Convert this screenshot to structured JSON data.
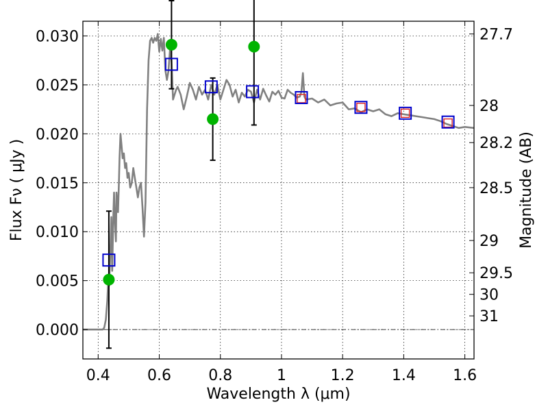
{
  "chart_data": {
    "type": "line",
    "xlabel": "Wavelength  λ (μm)",
    "ylabel": "Flux  Fν  ( μJy )",
    "ylabel_right": "Magnitude (AB)",
    "xlim": [
      0.35,
      1.63
    ],
    "ylim": [
      -0.003,
      0.0315
    ],
    "grid": true,
    "x_ticks": [
      0.4,
      0.6,
      0.8,
      1.0,
      1.2,
      1.4,
      1.6
    ],
    "x_tick_labels": [
      "0.4",
      "0.6",
      "0.8",
      "1",
      "1.2",
      "1.4",
      "1.6"
    ],
    "y_ticks": [
      0.0,
      0.005,
      0.01,
      0.015,
      0.02,
      0.025,
      0.03
    ],
    "y_tick_labels": [
      "0.000",
      "0.005",
      "0.010",
      "0.015",
      "0.020",
      "0.025",
      "0.030"
    ],
    "right_ticks": [
      {
        "label": "27.7",
        "flux": 0.0302
      },
      {
        "label": "28",
        "flux": 0.0229
      },
      {
        "label": "28.2",
        "flux": 0.0191
      },
      {
        "label": "28.5",
        "flux": 0.0145
      },
      {
        "label": "29",
        "flux": 0.0091
      },
      {
        "label": "29.5",
        "flux": 0.0058
      },
      {
        "label": "30",
        "flux": 0.0036
      },
      {
        "label": "31",
        "flux": 0.0014
      }
    ],
    "series": [
      {
        "kind": "model_spectrum",
        "color": "#808080",
        "x": [
          0.35,
          0.4,
          0.41,
          0.415,
          0.42,
          0.425,
          0.43,
          0.433,
          0.436,
          0.44,
          0.443,
          0.446,
          0.45,
          0.452,
          0.455,
          0.458,
          0.46,
          0.462,
          0.465,
          0.468,
          0.47,
          0.473,
          0.476,
          0.48,
          0.484,
          0.488,
          0.492,
          0.496,
          0.5,
          0.505,
          0.51,
          0.515,
          0.52,
          0.525,
          0.53,
          0.535,
          0.54,
          0.545,
          0.55,
          0.555,
          0.56,
          0.565,
          0.57,
          0.575,
          0.58,
          0.585,
          0.59,
          0.595,
          0.6,
          0.605,
          0.61,
          0.615,
          0.62,
          0.625,
          0.63,
          0.635,
          0.64,
          0.645,
          0.65,
          0.655,
          0.66,
          0.67,
          0.68,
          0.69,
          0.7,
          0.71,
          0.72,
          0.73,
          0.74,
          0.75,
          0.76,
          0.77,
          0.78,
          0.79,
          0.8,
          0.81,
          0.82,
          0.83,
          0.84,
          0.85,
          0.86,
          0.87,
          0.88,
          0.89,
          0.9,
          0.91,
          0.92,
          0.93,
          0.94,
          0.95,
          0.96,
          0.97,
          0.98,
          0.99,
          1.0,
          1.01,
          1.02,
          1.03,
          1.04,
          1.05,
          1.06,
          1.065,
          1.07,
          1.075,
          1.08,
          1.1,
          1.12,
          1.14,
          1.16,
          1.18,
          1.2,
          1.22,
          1.24,
          1.26,
          1.28,
          1.3,
          1.32,
          1.34,
          1.36,
          1.38,
          1.4,
          1.42,
          1.44,
          1.46,
          1.48,
          1.5,
          1.52,
          1.54,
          1.56,
          1.58,
          1.6,
          1.63
        ],
        "y": [
          0.0,
          0.0,
          0.0,
          0.0,
          0.0002,
          0.001,
          0.003,
          0.005,
          0.0045,
          0.008,
          0.0115,
          0.006,
          0.012,
          0.014,
          0.011,
          0.009,
          0.014,
          0.013,
          0.012,
          0.015,
          0.0175,
          0.02,
          0.019,
          0.0175,
          0.018,
          0.0165,
          0.017,
          0.0155,
          0.016,
          0.0145,
          0.015,
          0.0165,
          0.0155,
          0.0145,
          0.0135,
          0.0145,
          0.015,
          0.0125,
          0.0095,
          0.013,
          0.0225,
          0.0275,
          0.0295,
          0.0298,
          0.0293,
          0.0298,
          0.0295,
          0.0302,
          0.0284,
          0.0297,
          0.0285,
          0.0298,
          0.0265,
          0.0255,
          0.0264,
          0.0285,
          0.0275,
          0.0235,
          0.024,
          0.0245,
          0.0248,
          0.024,
          0.0225,
          0.0238,
          0.0252,
          0.0245,
          0.0235,
          0.0248,
          0.024,
          0.0245,
          0.0235,
          0.025,
          0.024,
          0.025,
          0.0235,
          0.0245,
          0.0255,
          0.025,
          0.0238,
          0.0245,
          0.0232,
          0.0242,
          0.0238,
          0.0245,
          0.0243,
          0.0232,
          0.0245,
          0.0235,
          0.0246,
          0.0239,
          0.0233,
          0.0243,
          0.024,
          0.0244,
          0.0237,
          0.0236,
          0.0245,
          0.0242,
          0.024,
          0.0237,
          0.0238,
          0.0243,
          0.0262,
          0.0238,
          0.0235,
          0.0236,
          0.0232,
          0.0235,
          0.0229,
          0.0231,
          0.0232,
          0.0225,
          0.0226,
          0.0222,
          0.0225,
          0.0223,
          0.0225,
          0.022,
          0.0218,
          0.0221,
          0.022,
          0.0219,
          0.0218,
          0.0217,
          0.0216,
          0.0215,
          0.0213,
          0.021,
          0.0208,
          0.0206,
          0.0207,
          0.0206
        ]
      },
      {
        "kind": "observed",
        "color": "#00b400",
        "x": [
          0.435,
          0.64,
          0.775,
          0.91
        ],
        "y": [
          0.0051,
          0.0291,
          0.0215,
          0.0289
        ],
        "err": [
          0.007,
          0.0045,
          0.0042,
          0.008
        ]
      },
      {
        "kind": "model_blue_squares",
        "color": "#0000cc",
        "x": [
          0.435,
          0.64,
          0.77,
          0.905,
          1.065,
          1.26,
          1.405,
          1.545
        ],
        "y": [
          0.0071,
          0.0271,
          0.0248,
          0.0243,
          0.0237,
          0.0227,
          0.0221,
          0.0212
        ]
      },
      {
        "kind": "model_red_squares",
        "color": "#dd2222",
        "x": [
          1.065,
          1.26,
          1.405,
          1.545
        ],
        "y": [
          0.0236,
          0.0227,
          0.0221,
          0.0211
        ]
      }
    ]
  }
}
